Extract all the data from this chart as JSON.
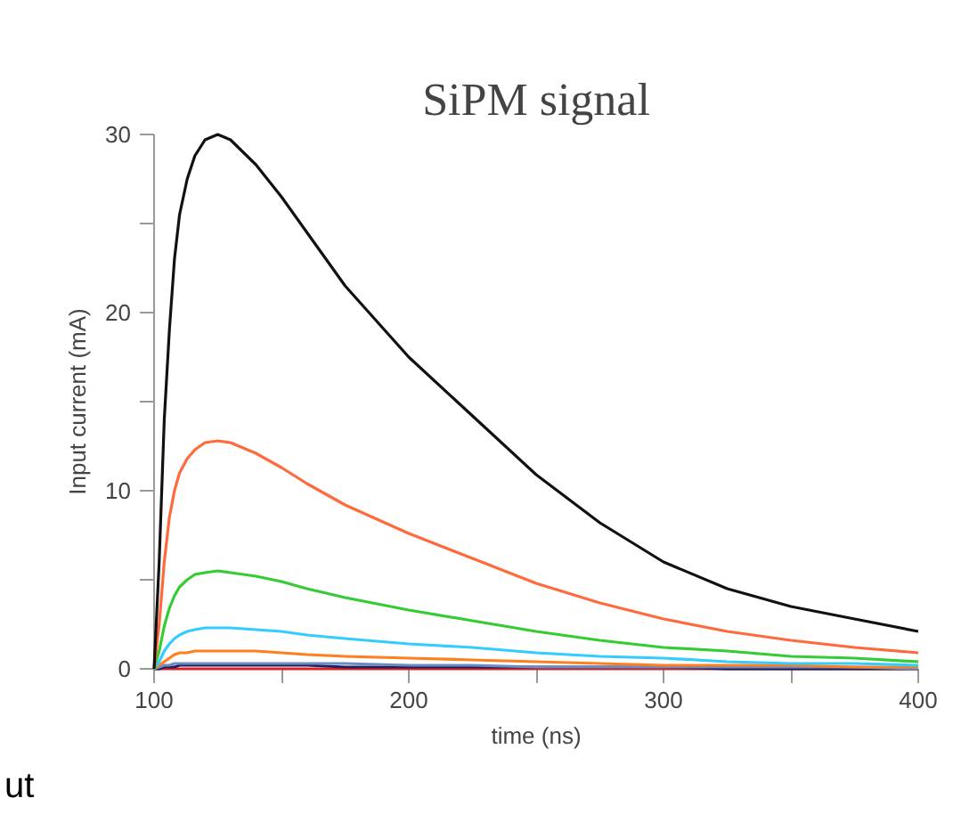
{
  "chart_data": {
    "type": "line",
    "title": "SiPM signal",
    "xlabel": "time (ns)",
    "ylabel": "Input current (mA)",
    "x": [
      100,
      102,
      104,
      106,
      108,
      110,
      113,
      116,
      120,
      125,
      130,
      140,
      150,
      160,
      175,
      200,
      225,
      250,
      275,
      300,
      325,
      350,
      375,
      400
    ],
    "series": [
      {
        "color": "#111111",
        "values": [
          0,
          6,
          14,
          19,
          23,
          25.5,
          27.5,
          28.8,
          29.7,
          30,
          29.7,
          28.3,
          26.5,
          24.5,
          21.5,
          17.5,
          14.2,
          10.9,
          8.2,
          6.0,
          4.5,
          3.5,
          2.8,
          2.1
        ]
      },
      {
        "color": "#ff6a3d",
        "values": [
          0,
          2.5,
          6,
          8.5,
          10,
          11,
          11.8,
          12.3,
          12.7,
          12.8,
          12.7,
          12.1,
          11.3,
          10.4,
          9.2,
          7.6,
          6.2,
          4.8,
          3.7,
          2.8,
          2.1,
          1.6,
          1.2,
          0.9
        ]
      },
      {
        "color": "#33cc33",
        "values": [
          0,
          1,
          2.4,
          3.4,
          4.1,
          4.6,
          5,
          5.3,
          5.4,
          5.5,
          5.4,
          5.2,
          4.9,
          4.5,
          4,
          3.3,
          2.7,
          2.1,
          1.6,
          1.2,
          1,
          0.7,
          0.6,
          0.4
        ]
      },
      {
        "color": "#33ccff",
        "values": [
          0,
          0.4,
          1,
          1.4,
          1.7,
          1.9,
          2.1,
          2.2,
          2.3,
          2.3,
          2.3,
          2.2,
          2.1,
          1.9,
          1.7,
          1.4,
          1.2,
          0.9,
          0.7,
          0.6,
          0.4,
          0.3,
          0.3,
          0.2
        ]
      },
      {
        "color": "#ff7f1f",
        "values": [
          0,
          0.2,
          0.4,
          0.6,
          0.8,
          0.9,
          0.9,
          1,
          1,
          1,
          1,
          1,
          0.9,
          0.8,
          0.7,
          0.6,
          0.5,
          0.4,
          0.3,
          0.2,
          0.2,
          0.2,
          0.1,
          0.1
        ]
      },
      {
        "color": "#6a8cc0",
        "values": [
          0,
          0.1,
          0.2,
          0.2,
          0.3,
          0.3,
          0.3,
          0.3,
          0.3,
          0.3,
          0.3,
          0.3,
          0.3,
          0.3,
          0.3,
          0.2,
          0.2,
          0.1,
          0.1,
          0.1,
          0.1,
          0.1,
          0.1,
          0
        ]
      },
      {
        "color": "#202060",
        "values": [
          0,
          0,
          0.1,
          0.1,
          0.1,
          0.2,
          0.2,
          0.2,
          0.2,
          0.2,
          0.2,
          0.2,
          0.2,
          0.2,
          0.1,
          0.1,
          0.1,
          0.1,
          0.1,
          0.1,
          0,
          0,
          0,
          0
        ]
      },
      {
        "color": "#e02020",
        "values": [
          0,
          0,
          0,
          0,
          0,
          0,
          0,
          0,
          0,
          0,
          0,
          0,
          0,
          0,
          0,
          0,
          0,
          0,
          0,
          0,
          0,
          0,
          0,
          0
        ]
      }
    ],
    "xlim": [
      100,
      400
    ],
    "ylim": [
      0,
      30
    ],
    "xticks": [
      100,
      {
        "value": 150,
        "label": null
      },
      200,
      {
        "value": 250,
        "label": null
      },
      300,
      {
        "value": 350,
        "label": null
      },
      400
    ],
    "yticks": [
      0,
      {
        "value": 5,
        "label": null
      },
      10,
      {
        "value": 15,
        "label": null
      },
      20,
      {
        "value": 25,
        "label": null
      },
      30
    ],
    "grid": false,
    "marker": "none",
    "line_style": "solid",
    "annotations": [
      "ut"
    ]
  }
}
